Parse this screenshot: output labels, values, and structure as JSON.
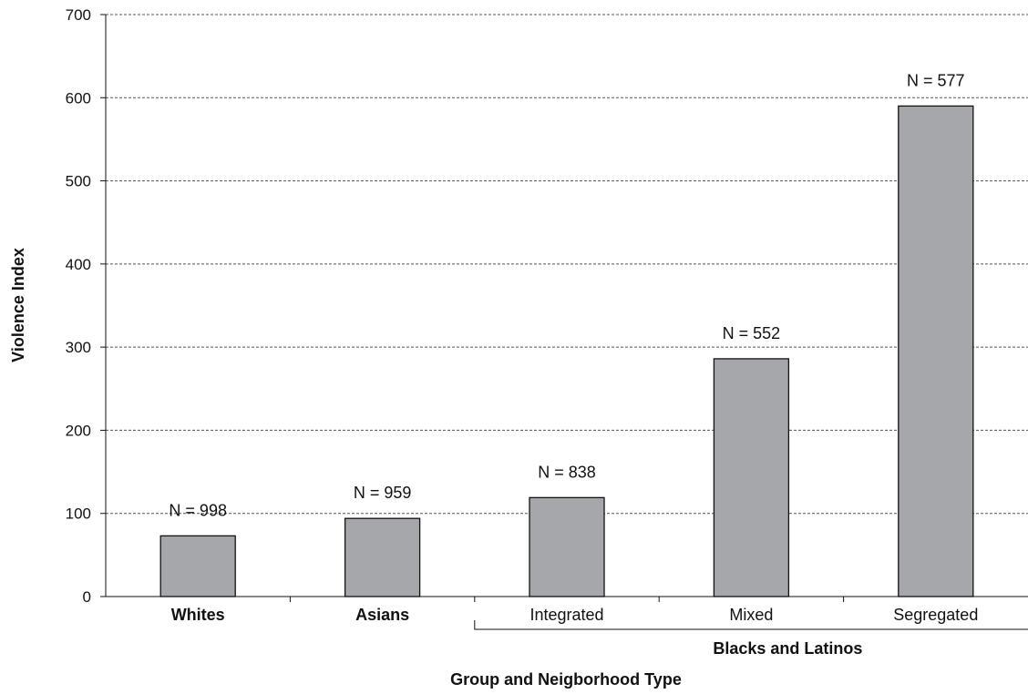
{
  "chart_data": {
    "type": "bar",
    "title": "",
    "xlabel": "Group and Neigborhood Type",
    "ylabel": "Violence Index",
    "ylim": [
      0,
      700
    ],
    "yticks": [
      0,
      100,
      200,
      300,
      400,
      500,
      600,
      700
    ],
    "grid": true,
    "categories": [
      "Whites",
      "Asians",
      "Integrated",
      "Mixed",
      "Segregated"
    ],
    "category_bold": [
      true,
      true,
      false,
      false,
      false
    ],
    "values": [
      73,
      94,
      119,
      286,
      590
    ],
    "annotations": [
      "N = 998",
      "N = 959",
      "N = 838",
      "N = 552",
      "N = 577"
    ],
    "group_label": "Blacks and Latinos",
    "group_span": [
      2,
      4
    ],
    "bar_color": "#a6a7ab"
  }
}
